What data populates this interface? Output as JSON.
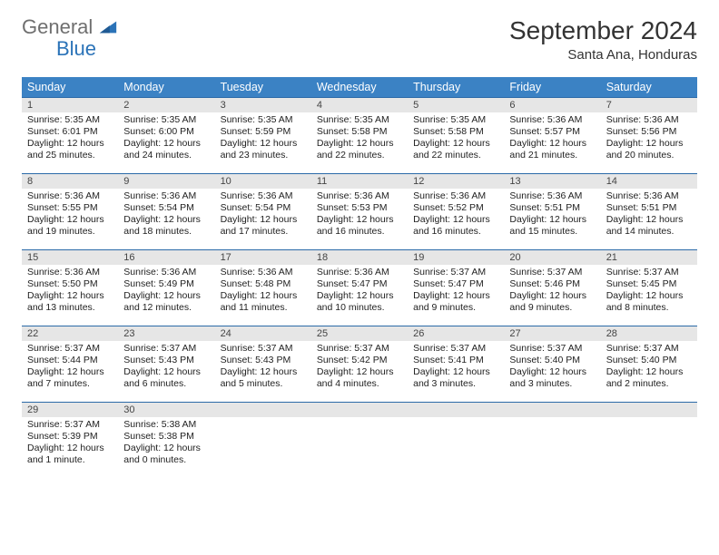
{
  "brand": {
    "word1": "General",
    "word2": "Blue"
  },
  "title": "September 2024",
  "location": "Santa Ana, Honduras",
  "colors": {
    "header_bg": "#3b82c4",
    "header_text": "#ffffff",
    "daynum_bg": "#e6e6e6",
    "row_border": "#2b6aa8",
    "logo_gray": "#6f6f6f",
    "logo_blue": "#2b73b8"
  },
  "day_headers": [
    "Sunday",
    "Monday",
    "Tuesday",
    "Wednesday",
    "Thursday",
    "Friday",
    "Saturday"
  ],
  "days": [
    {
      "n": "1",
      "sunrise": "5:35 AM",
      "sunset": "6:01 PM",
      "daylight": "12 hours and 25 minutes."
    },
    {
      "n": "2",
      "sunrise": "5:35 AM",
      "sunset": "6:00 PM",
      "daylight": "12 hours and 24 minutes."
    },
    {
      "n": "3",
      "sunrise": "5:35 AM",
      "sunset": "5:59 PM",
      "daylight": "12 hours and 23 minutes."
    },
    {
      "n": "4",
      "sunrise": "5:35 AM",
      "sunset": "5:58 PM",
      "daylight": "12 hours and 22 minutes."
    },
    {
      "n": "5",
      "sunrise": "5:35 AM",
      "sunset": "5:58 PM",
      "daylight": "12 hours and 22 minutes."
    },
    {
      "n": "6",
      "sunrise": "5:36 AM",
      "sunset": "5:57 PM",
      "daylight": "12 hours and 21 minutes."
    },
    {
      "n": "7",
      "sunrise": "5:36 AM",
      "sunset": "5:56 PM",
      "daylight": "12 hours and 20 minutes."
    },
    {
      "n": "8",
      "sunrise": "5:36 AM",
      "sunset": "5:55 PM",
      "daylight": "12 hours and 19 minutes."
    },
    {
      "n": "9",
      "sunrise": "5:36 AM",
      "sunset": "5:54 PM",
      "daylight": "12 hours and 18 minutes."
    },
    {
      "n": "10",
      "sunrise": "5:36 AM",
      "sunset": "5:54 PM",
      "daylight": "12 hours and 17 minutes."
    },
    {
      "n": "11",
      "sunrise": "5:36 AM",
      "sunset": "5:53 PM",
      "daylight": "12 hours and 16 minutes."
    },
    {
      "n": "12",
      "sunrise": "5:36 AM",
      "sunset": "5:52 PM",
      "daylight": "12 hours and 16 minutes."
    },
    {
      "n": "13",
      "sunrise": "5:36 AM",
      "sunset": "5:51 PM",
      "daylight": "12 hours and 15 minutes."
    },
    {
      "n": "14",
      "sunrise": "5:36 AM",
      "sunset": "5:51 PM",
      "daylight": "12 hours and 14 minutes."
    },
    {
      "n": "15",
      "sunrise": "5:36 AM",
      "sunset": "5:50 PM",
      "daylight": "12 hours and 13 minutes."
    },
    {
      "n": "16",
      "sunrise": "5:36 AM",
      "sunset": "5:49 PM",
      "daylight": "12 hours and 12 minutes."
    },
    {
      "n": "17",
      "sunrise": "5:36 AM",
      "sunset": "5:48 PM",
      "daylight": "12 hours and 11 minutes."
    },
    {
      "n": "18",
      "sunrise": "5:36 AM",
      "sunset": "5:47 PM",
      "daylight": "12 hours and 10 minutes."
    },
    {
      "n": "19",
      "sunrise": "5:37 AM",
      "sunset": "5:47 PM",
      "daylight": "12 hours and 9 minutes."
    },
    {
      "n": "20",
      "sunrise": "5:37 AM",
      "sunset": "5:46 PM",
      "daylight": "12 hours and 9 minutes."
    },
    {
      "n": "21",
      "sunrise": "5:37 AM",
      "sunset": "5:45 PM",
      "daylight": "12 hours and 8 minutes."
    },
    {
      "n": "22",
      "sunrise": "5:37 AM",
      "sunset": "5:44 PM",
      "daylight": "12 hours and 7 minutes."
    },
    {
      "n": "23",
      "sunrise": "5:37 AM",
      "sunset": "5:43 PM",
      "daylight": "12 hours and 6 minutes."
    },
    {
      "n": "24",
      "sunrise": "5:37 AM",
      "sunset": "5:43 PM",
      "daylight": "12 hours and 5 minutes."
    },
    {
      "n": "25",
      "sunrise": "5:37 AM",
      "sunset": "5:42 PM",
      "daylight": "12 hours and 4 minutes."
    },
    {
      "n": "26",
      "sunrise": "5:37 AM",
      "sunset": "5:41 PM",
      "daylight": "12 hours and 3 minutes."
    },
    {
      "n": "27",
      "sunrise": "5:37 AM",
      "sunset": "5:40 PM",
      "daylight": "12 hours and 3 minutes."
    },
    {
      "n": "28",
      "sunrise": "5:37 AM",
      "sunset": "5:40 PM",
      "daylight": "12 hours and 2 minutes."
    },
    {
      "n": "29",
      "sunrise": "5:37 AM",
      "sunset": "5:39 PM",
      "daylight": "12 hours and 1 minute."
    },
    {
      "n": "30",
      "sunrise": "5:38 AM",
      "sunset": "5:38 PM",
      "daylight": "12 hours and 0 minutes."
    }
  ],
  "labels": {
    "sunrise": "Sunrise:",
    "sunset": "Sunset:",
    "daylight": "Daylight:"
  },
  "layout": {
    "weeks": 5,
    "cols": 7,
    "start_weekday": 0
  }
}
